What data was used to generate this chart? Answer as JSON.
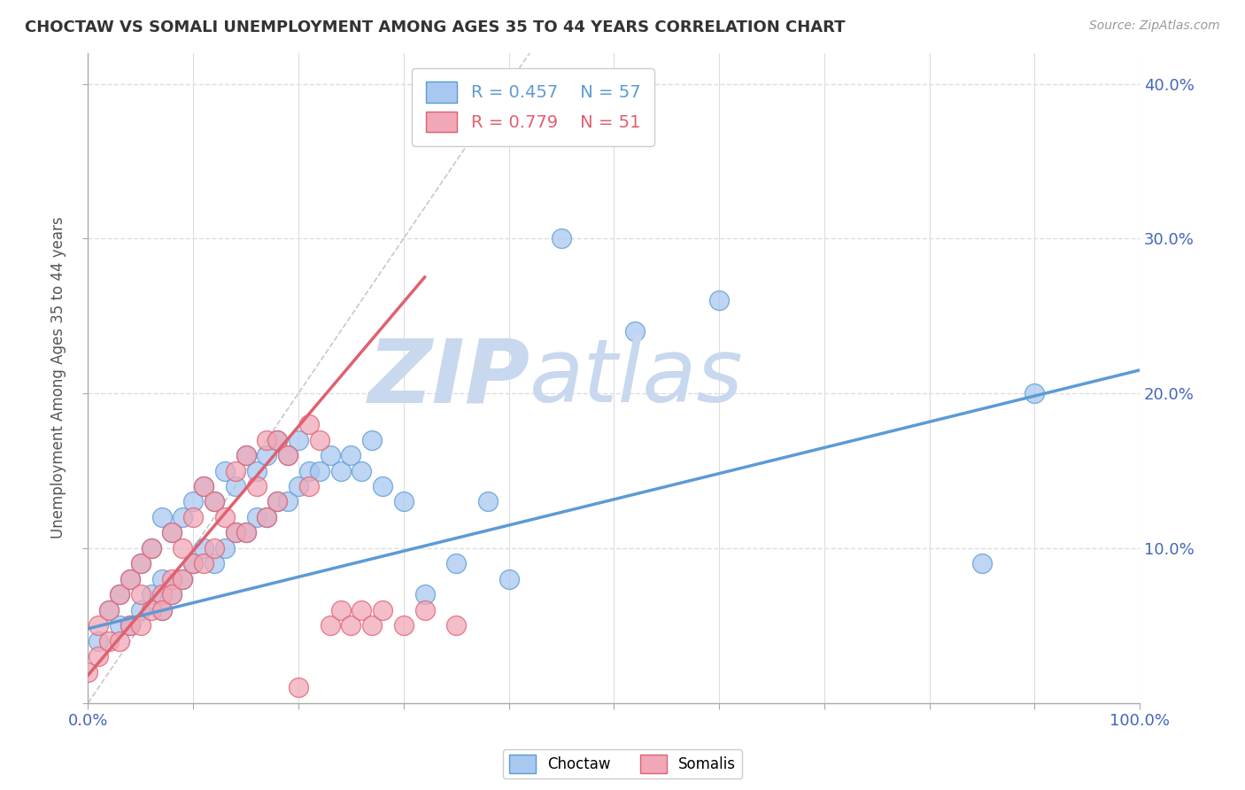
{
  "title": "CHOCTAW VS SOMALI UNEMPLOYMENT AMONG AGES 35 TO 44 YEARS CORRELATION CHART",
  "source_text": "Source: ZipAtlas.com",
  "ylabel": "Unemployment Among Ages 35 to 44 years",
  "xlabel": "",
  "xlim": [
    0,
    1.0
  ],
  "ylim": [
    0,
    0.42
  ],
  "choctaw_color": "#a8c8f0",
  "somali_color": "#f0a8b8",
  "choctaw_edge_color": "#5b9bd5",
  "somali_edge_color": "#e06070",
  "choctaw_line_color": "#5b9bd5",
  "somali_line_color": "#e06070",
  "legend_R_choctaw": "R = 0.457",
  "legend_N_choctaw": "N = 57",
  "legend_R_somali": "R = 0.779",
  "legend_N_somali": "N = 51",
  "legend_label_choctaw": "Choctaw",
  "legend_label_somali": "Somalis",
  "watermark_zip": "ZIP",
  "watermark_atlas": "atlas",
  "watermark_color": "#c8d8ee",
  "grid_color": "#dddddd",
  "background_color": "#ffffff",
  "choctaw_line_x0": 0.0,
  "choctaw_line_y0": 0.048,
  "choctaw_line_x1": 1.0,
  "choctaw_line_y1": 0.215,
  "somali_line_x0": 0.0,
  "somali_line_y0": 0.018,
  "somali_line_x1": 0.32,
  "somali_line_y1": 0.275,
  "diag_line_x0": 0.0,
  "diag_line_y0": 0.0,
  "diag_line_x1": 0.42,
  "diag_line_y1": 0.42,
  "choctaw_x": [
    0.01,
    0.02,
    0.03,
    0.03,
    0.04,
    0.04,
    0.05,
    0.05,
    0.06,
    0.06,
    0.07,
    0.07,
    0.07,
    0.08,
    0.08,
    0.09,
    0.09,
    0.1,
    0.1,
    0.11,
    0.11,
    0.12,
    0.12,
    0.13,
    0.13,
    0.14,
    0.14,
    0.15,
    0.15,
    0.16,
    0.16,
    0.17,
    0.17,
    0.18,
    0.18,
    0.19,
    0.19,
    0.2,
    0.2,
    0.21,
    0.22,
    0.23,
    0.24,
    0.25,
    0.26,
    0.27,
    0.28,
    0.3,
    0.32,
    0.35,
    0.38,
    0.4,
    0.45,
    0.52,
    0.6,
    0.85,
    0.9
  ],
  "choctaw_y": [
    0.04,
    0.06,
    0.05,
    0.07,
    0.05,
    0.08,
    0.06,
    0.09,
    0.07,
    0.1,
    0.06,
    0.08,
    0.12,
    0.07,
    0.11,
    0.08,
    0.12,
    0.09,
    0.13,
    0.1,
    0.14,
    0.09,
    0.13,
    0.1,
    0.15,
    0.11,
    0.14,
    0.11,
    0.16,
    0.12,
    0.15,
    0.12,
    0.16,
    0.13,
    0.17,
    0.13,
    0.16,
    0.14,
    0.17,
    0.15,
    0.15,
    0.16,
    0.15,
    0.16,
    0.15,
    0.17,
    0.14,
    0.13,
    0.07,
    0.09,
    0.13,
    0.08,
    0.3,
    0.24,
    0.26,
    0.09,
    0.2
  ],
  "somali_x": [
    0.0,
    0.01,
    0.01,
    0.02,
    0.02,
    0.03,
    0.03,
    0.04,
    0.04,
    0.05,
    0.05,
    0.05,
    0.06,
    0.06,
    0.07,
    0.07,
    0.08,
    0.08,
    0.08,
    0.09,
    0.09,
    0.1,
    0.1,
    0.11,
    0.11,
    0.12,
    0.12,
    0.13,
    0.14,
    0.14,
    0.15,
    0.15,
    0.16,
    0.17,
    0.17,
    0.18,
    0.18,
    0.19,
    0.2,
    0.21,
    0.21,
    0.22,
    0.23,
    0.24,
    0.25,
    0.26,
    0.27,
    0.28,
    0.3,
    0.32,
    0.35
  ],
  "somali_y": [
    0.02,
    0.03,
    0.05,
    0.04,
    0.06,
    0.04,
    0.07,
    0.05,
    0.08,
    0.05,
    0.07,
    0.09,
    0.06,
    0.1,
    0.07,
    0.06,
    0.08,
    0.07,
    0.11,
    0.08,
    0.1,
    0.09,
    0.12,
    0.09,
    0.14,
    0.1,
    0.13,
    0.12,
    0.11,
    0.15,
    0.11,
    0.16,
    0.14,
    0.12,
    0.17,
    0.13,
    0.17,
    0.16,
    0.01,
    0.14,
    0.18,
    0.17,
    0.05,
    0.06,
    0.05,
    0.06,
    0.05,
    0.06,
    0.05,
    0.06,
    0.05
  ]
}
